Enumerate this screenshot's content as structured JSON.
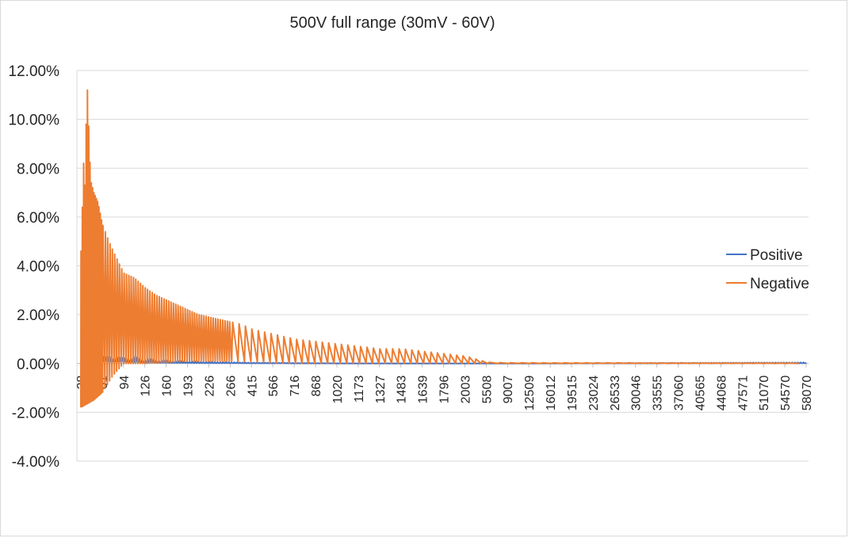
{
  "chart_data": {
    "type": "line",
    "title": "500V full range (30mV - 60V)",
    "xlabel": "",
    "ylabel": "",
    "ylim": [
      -0.04,
      0.12
    ],
    "yticks": [
      "-4.00%",
      "-2.00%",
      "0.00%",
      "2.00%",
      "4.00%",
      "6.00%",
      "8.00%",
      "10.00%",
      "12.00%"
    ],
    "ytick_values": [
      -0.04,
      -0.02,
      0.0,
      0.02,
      0.04,
      0.06,
      0.08,
      0.1,
      0.12
    ],
    "xtick_labels": [
      "28",
      "61",
      "94",
      "126",
      "160",
      "193",
      "226",
      "266",
      "415",
      "566",
      "716",
      "868",
      "1020",
      "1173",
      "1327",
      "1483",
      "1639",
      "1796",
      "2003",
      "5508",
      "9007",
      "12509",
      "16012",
      "19515",
      "23024",
      "26533",
      "30046",
      "33555",
      "37060",
      "40565",
      "44068",
      "47571",
      "51070",
      "54570",
      "58070"
    ],
    "grid": true,
    "legend_position": "right",
    "series": [
      {
        "name": "Positive",
        "color": "#4472c4",
        "envelope": [
          [
            0,
            0.0
          ],
          [
            0.5,
            0.006
          ],
          [
            1,
            0.003
          ],
          [
            2,
            0.0025
          ],
          [
            3,
            0.0015
          ],
          [
            4,
            0.001
          ],
          [
            5,
            0.0008
          ],
          [
            6,
            0.0006
          ],
          [
            7,
            0.0005
          ],
          [
            8,
            0.0003
          ],
          [
            10,
            0.0002
          ],
          [
            12,
            0.0001
          ],
          [
            19,
            0.0
          ],
          [
            34,
            0.0004
          ]
        ]
      },
      {
        "name": "Negative",
        "color": "#ed7d31",
        "envelope": [
          [
            0,
            0.046
          ],
          [
            0.12,
            0.082
          ],
          [
            0.2,
            0.07
          ],
          [
            0.25,
            0.105
          ],
          [
            0.3,
            0.112
          ],
          [
            0.45,
            0.075
          ],
          [
            0.6,
            0.07
          ],
          [
            0.8,
            0.066
          ],
          [
            1,
            0.057
          ],
          [
            1.3,
            0.05
          ],
          [
            1.5,
            0.046
          ],
          [
            2,
            0.037
          ],
          [
            2.5,
            0.035
          ],
          [
            3,
            0.031
          ],
          [
            3.5,
            0.028
          ],
          [
            4,
            0.026
          ],
          [
            4.5,
            0.024
          ],
          [
            5,
            0.022
          ],
          [
            5.5,
            0.02
          ],
          [
            6,
            0.019
          ],
          [
            6.5,
            0.018
          ],
          [
            7,
            0.017
          ],
          [
            7.5,
            0.016
          ],
          [
            8,
            0.014
          ],
          [
            8.5,
            0.013
          ],
          [
            9,
            0.012
          ],
          [
            10,
            0.01
          ],
          [
            11,
            0.009
          ],
          [
            12,
            0.008
          ],
          [
            13,
            0.007
          ],
          [
            14,
            0.006
          ],
          [
            15,
            0.006
          ],
          [
            16,
            0.005
          ],
          [
            17,
            0.004
          ],
          [
            18,
            0.003
          ],
          [
            19,
            0.0005
          ],
          [
            20,
            0.0003
          ],
          [
            34,
            0.0002
          ]
        ],
        "floor": [
          [
            0,
            -0.018
          ],
          [
            0.6,
            -0.015
          ],
          [
            1,
            -0.012
          ],
          [
            1.5,
            -0.005
          ],
          [
            2,
            0.0
          ],
          [
            3,
            0.0
          ],
          [
            5,
            0.001
          ],
          [
            7,
            0.001
          ],
          [
            10,
            0.0
          ],
          [
            19,
            0.0
          ],
          [
            34,
            0.0
          ]
        ]
      }
    ]
  }
}
